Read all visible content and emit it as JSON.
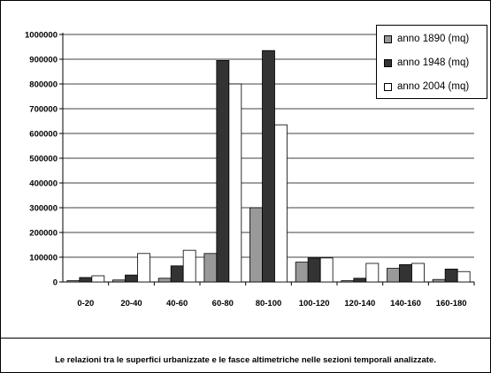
{
  "chart_data": {
    "type": "bar",
    "title": "",
    "xlabel": "",
    "ylabel": "",
    "categories": [
      "0-20",
      "20-40",
      "40-60",
      "60-80",
      "80-100",
      "100-120",
      "120-140",
      "140-160",
      "160-180"
    ],
    "series": [
      {
        "name": "anno 1890 (mq)",
        "color": "#999999",
        "values": [
          5000,
          8000,
          15000,
          115000,
          300000,
          80000,
          5000,
          55000,
          10000
        ]
      },
      {
        "name": "anno 1948 (mq)",
        "color": "#333333",
        "values": [
          18000,
          28000,
          65000,
          895000,
          935000,
          97000,
          15000,
          70000,
          52000
        ]
      },
      {
        "name": "anno 2004 (mq)",
        "color": "#ffffff",
        "values": [
          25000,
          115000,
          128000,
          800000,
          635000,
          97000,
          75000,
          75000,
          42000
        ]
      }
    ],
    "ylim": [
      0,
      1000000
    ],
    "yticks": [
      0,
      100000,
      200000,
      300000,
      400000,
      500000,
      600000,
      700000,
      800000,
      900000,
      1000000
    ],
    "grid": true,
    "legend_position": "top-right"
  },
  "caption": "Le relazioni tra le superfici urbanizzate e le fasce altimetriche nelle sezioni temporali analizzate."
}
